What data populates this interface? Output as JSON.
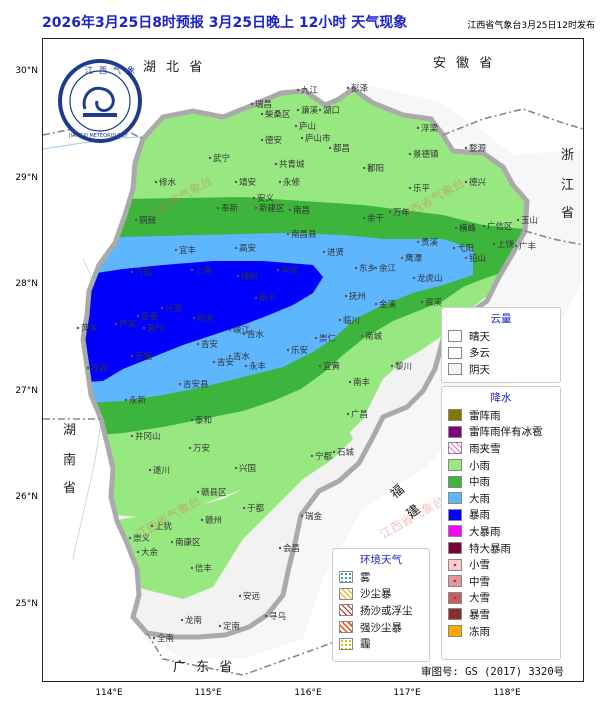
{
  "header": {
    "title": "2026年3月25日8时预报 3月25日晚上 12小时  天气现象",
    "publisher": "江西省气象台3月25日12时发布"
  },
  "axes": {
    "lat_labels": [
      "30°N",
      "29°N",
      "28°N",
      "27°N",
      "26°N",
      "25°N"
    ],
    "lon_labels": [
      "114°E",
      "115°E",
      "116°E",
      "117°E",
      "118°E"
    ]
  },
  "logo": {
    "text_cn": "江西气象",
    "text_en": "JIANGXI METEOROLOGY"
  },
  "neighbors": {
    "hubei": "湖 北 省",
    "anhui": "安 徽 省",
    "zhejiang": "浙 江 省",
    "fujian": "福 建 省",
    "hunan": "湖 南 省",
    "guangdong": "广 东 省"
  },
  "watermark": "江西省气象台",
  "cities": {
    "jiujiang": "九江",
    "ruichang": "瑞昌",
    "chaisang": "柴桑区",
    "lianxi": "濂溪",
    "pengze": "彭泽",
    "lushan": "庐山",
    "lushanshi": "庐山市",
    "hukou": "湖口",
    "duchang": "都昌",
    "dean": "德安",
    "wuning": "武宁",
    "gongqing": "共青城",
    "yongxiu": "永修",
    "xiushui": "修水",
    "poyang": "鄱阳",
    "fuliang": "浮梁",
    "jingdezhen": "景德镇",
    "wuyuan": "婺源",
    "leping": "乐平",
    "dexing": "德兴",
    "jing_an": "靖安",
    "anyi": "安义",
    "fengxin": "奉新",
    "xinjian": "新建区",
    "nanchang": "南昌",
    "nanchangxian": "南昌县",
    "yugan": "余干",
    "wannian": "万年",
    "tonggu": "铜鼓",
    "yifeng": "宜丰",
    "gaoan": "高安",
    "jinxian": "进贤",
    "guixi": "贵溪",
    "yujiang": "余江",
    "dongxiang": "东乡",
    "yingtan": "鹰潭",
    "longhushan": "龙虎山",
    "guangxin": "广信区",
    "yushan": "玉山",
    "shangrao": "上饶",
    "hengfeng": "横峰",
    "yiyang": "弋阳",
    "qianshan": "铅山",
    "guangfeng": "广丰",
    "wanzai": "万载",
    "shanggao": "上高",
    "zhangshu": "樟树",
    "fengcheng": "丰城",
    "fuzhou": "抚州",
    "linchuan": "临川",
    "jinxi": "金溪",
    "zixi": "资溪",
    "yichun": "宜春",
    "fenyi": "分宜",
    "xinyu": "新余",
    "yuanzhou": "袁州",
    "pingxiang": "萍乡",
    "luxi": "芦溪",
    "lianhua": "莲花",
    "anfu": "安福",
    "xingan": "新干",
    "xiajiang": "峡江",
    "chongren": "崇仁",
    "yihuang": "宜黄",
    "nancheng": "南城",
    "lichuan": "黎川",
    "nanfeng": "南丰",
    "jishui": "吉水",
    "jiuan": "吉安",
    "jianxian": "吉安县",
    "yongfeng": "永丰",
    "leanxian": "乐安",
    "taihe": "泰和",
    "guangchang": "广昌",
    "yongxin": "永新",
    "jinggangshan": "井冈山",
    "suichuan": "遂川",
    "wanan": "万安",
    "xingguo": "兴国",
    "ningdu": "宁都",
    "shicheng": "石城",
    "ganxian": "赣县区",
    "yudu": "于都",
    "ruijin": "瑞金",
    "ganzhou": "赣州",
    "shangyou": "上犹",
    "nankang": "南康区",
    "chongyi": "崇义",
    "dayu": "大余",
    "huichang": "会昌",
    "xinfeng": "信丰",
    "anyuan": "安远",
    "quannan": "全南",
    "longnan": "龙南",
    "dingnan": "定南",
    "xunwu": "寻乌",
    "jian_an": "吉安",
    "ji_shui": "吉水"
  },
  "legend_cloud": {
    "title": "云量",
    "items": [
      {
        "label": "晴天",
        "color": "#ffffff"
      },
      {
        "label": "多云",
        "color": "#ffffff"
      },
      {
        "label": "阴天",
        "color": "#f2f2f2"
      }
    ]
  },
  "legend_precip": {
    "title": "降水",
    "items": [
      {
        "label": "雷阵雨",
        "color": "#807700"
      },
      {
        "label": "雷阵雨伴有冰雹",
        "color": "#800080"
      },
      {
        "label": "雨夹雪",
        "color": "#ffffff",
        "pattern": "hatch-pink"
      },
      {
        "label": "小雨",
        "color": "#98e882"
      },
      {
        "label": "中雨",
        "color": "#3db53d"
      },
      {
        "label": "大雨",
        "color": "#5eb6ff"
      },
      {
        "label": "暴雨",
        "color": "#0000ff"
      },
      {
        "label": "大暴雨",
        "color": "#ff00ff"
      },
      {
        "label": "特大暴雨",
        "color": "#7a0035"
      },
      {
        "label": "小雪",
        "color": "#f5cccc",
        "pattern": "dot"
      },
      {
        "label": "中雪",
        "color": "#e09999",
        "pattern": "dot"
      },
      {
        "label": "大雪",
        "color": "#c06060",
        "pattern": "dot"
      },
      {
        "label": "暴雪",
        "color": "#8b2d2d"
      },
      {
        "label": "冻雨",
        "color": "#ffa500"
      }
    ]
  },
  "legend_env": {
    "title": "环境天气",
    "items": [
      {
        "label": "雾",
        "color": "#ffffff",
        "pattern": "dots-teal"
      },
      {
        "label": "沙尘暴",
        "color": "#ffffff",
        "pattern": "hatch-orange"
      },
      {
        "label": "扬沙或浮尘",
        "color": "#ffffff",
        "pattern": "hatch-red"
      },
      {
        "label": "强沙尘暴",
        "color": "#ffffff",
        "pattern": "hatch-darkred"
      },
      {
        "label": "霾",
        "color": "#ffffff",
        "pattern": "dots-yellow"
      }
    ]
  },
  "approval_no": "审图号: GS (2017) 3320号",
  "colors": {
    "light_rain": "#98e882",
    "moderate_rain": "#3db53d",
    "heavy_rain": "#5eb6ff",
    "rainstorm": "#0000ff",
    "cloudy": "#f2f2f2",
    "title": "#1a24c8"
  }
}
